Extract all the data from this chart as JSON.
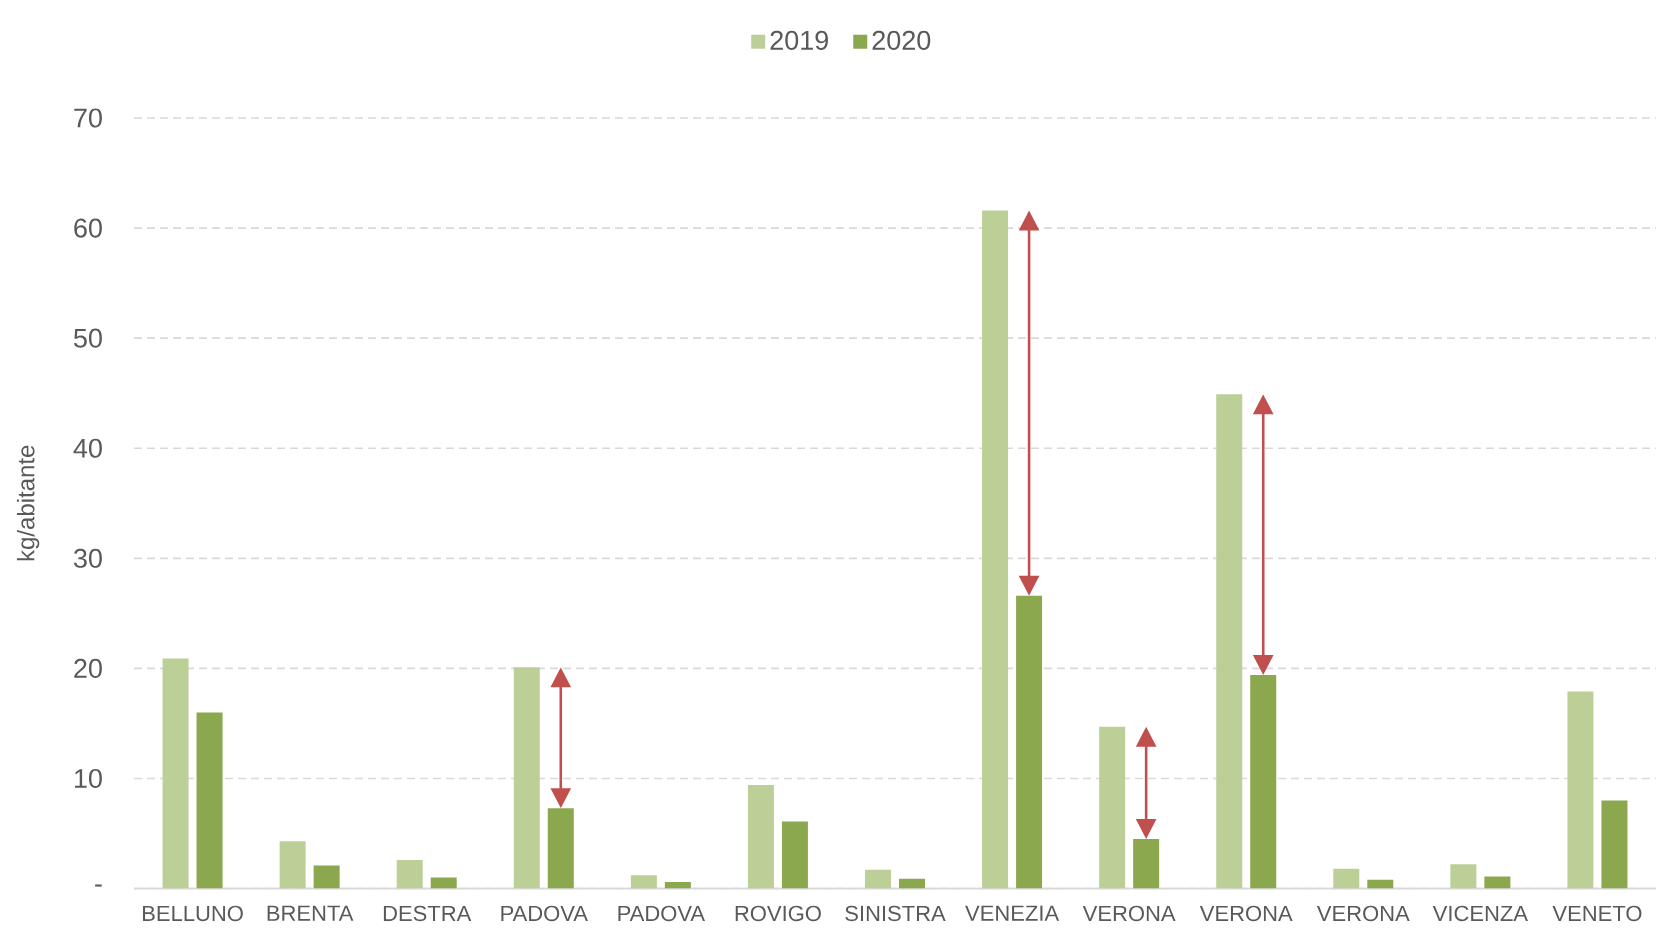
{
  "chart_data": {
    "type": "bar",
    "ylabel": "kg/abitante",
    "categories": [
      "BELLUNO",
      "BRENTA",
      "DESTRA",
      "PADOVA",
      "PADOVA",
      "ROVIGO",
      "SINISTRA",
      "VENEZIA",
      "VERONA",
      "VERONA",
      "VERONA",
      "VICENZA",
      "VENETO"
    ],
    "series": [
      {
        "name": "2019",
        "color": "#bbcf97",
        "values": [
          20.9,
          4.3,
          2.6,
          20.1,
          1.2,
          9.4,
          1.7,
          61.6,
          14.7,
          44.9,
          1.8,
          2.2,
          17.9
        ]
      },
      {
        "name": "2020",
        "color": "#8ba84f",
        "values": [
          16.0,
          2.1,
          1.0,
          7.3,
          0.6,
          6.1,
          0.9,
          26.6,
          4.5,
          19.4,
          0.8,
          1.1,
          8.0
        ]
      }
    ],
    "ylim": [
      0,
      70
    ],
    "yticks": [
      {
        "value": 0,
        "label": "-"
      },
      10,
      20,
      30,
      40,
      50,
      60,
      70
    ],
    "grid": "y",
    "legend": "top"
  }
}
